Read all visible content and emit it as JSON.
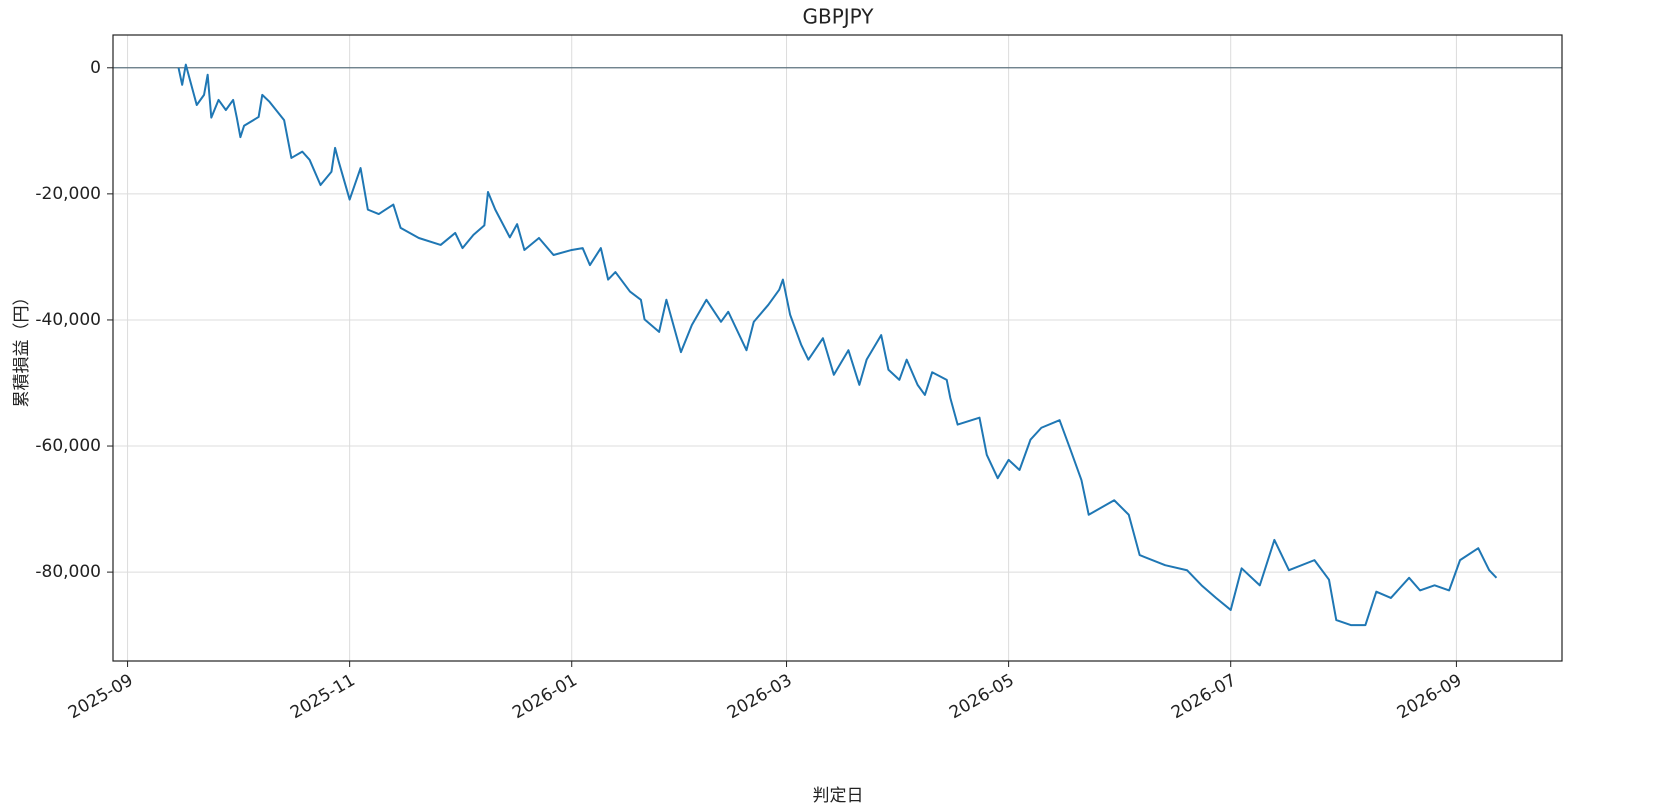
{
  "chart_data": {
    "type": "line",
    "title": "GBPJPY",
    "x_label": "判定日",
    "y_label": "累積損益（円）",
    "x": [
      "2025-09-15",
      "2025-09-16",
      "2025-09-17",
      "2025-09-20",
      "2025-09-22",
      "2025-09-23",
      "2025-09-24",
      "2025-09-26",
      "2025-09-28",
      "2025-09-30",
      "2025-10-01",
      "2025-10-02",
      "2025-10-03",
      "2025-10-07",
      "2025-10-08",
      "2025-10-10",
      "2025-10-14",
      "2025-10-16",
      "2025-10-19",
      "2025-10-21",
      "2025-10-24",
      "2025-10-27",
      "2025-10-28",
      "2025-10-29",
      "2025-11-01",
      "2025-11-04",
      "2025-11-06",
      "2025-11-09",
      "2025-11-13",
      "2025-11-15",
      "2025-11-20",
      "2025-11-26",
      "2025-11-30",
      "2025-12-02",
      "2025-12-05",
      "2025-12-08",
      "2025-12-09",
      "2025-12-11",
      "2025-12-15",
      "2025-12-17",
      "2025-12-19",
      "2025-12-23",
      "2025-12-27",
      "2026-01-01",
      "2026-01-04",
      "2026-01-06",
      "2026-01-09",
      "2026-01-11",
      "2026-01-13",
      "2026-01-17",
      "2026-01-20",
      "2026-01-21",
      "2026-01-25",
      "2026-01-27",
      "2026-01-31",
      "2026-02-03",
      "2026-02-07",
      "2026-02-11",
      "2026-02-13",
      "2026-02-18",
      "2026-02-20",
      "2026-02-24",
      "2026-02-27",
      "2026-02-28",
      "2026-03-02",
      "2026-03-05",
      "2026-03-07",
      "2026-03-11",
      "2026-03-14",
      "2026-03-18",
      "2026-03-21",
      "2026-03-23",
      "2026-03-27",
      "2026-03-29",
      "2026-04-01",
      "2026-04-03",
      "2026-04-06",
      "2026-04-08",
      "2026-04-10",
      "2026-04-14",
      "2026-04-15",
      "2026-04-17",
      "2026-04-23",
      "2026-04-25",
      "2026-04-28",
      "2026-05-01",
      "2026-05-04",
      "2026-05-07",
      "2026-05-10",
      "2026-05-15",
      "2026-05-18",
      "2026-05-21",
      "2026-05-23",
      "2026-05-30",
      "2026-06-03",
      "2026-06-06",
      "2026-06-13",
      "2026-06-19",
      "2026-06-23",
      "2026-06-27",
      "2026-07-01",
      "2026-07-04",
      "2026-07-09",
      "2026-07-13",
      "2026-07-17",
      "2026-07-24",
      "2026-07-28",
      "2026-07-30",
      "2026-08-03",
      "2026-08-07",
      "2026-08-10",
      "2026-08-14",
      "2026-08-19",
      "2026-08-22",
      "2026-08-26",
      "2026-08-30",
      "2026-09-02",
      "2026-09-07",
      "2026-09-10",
      "2026-09-12"
    ],
    "series": [
      {
        "color": "#1f77b4",
        "values": [
          0,
          -2700,
          500,
          -5900,
          -4300,
          -1100,
          -7900,
          -5100,
          -6700,
          -5100,
          -7900,
          -11000,
          -9200,
          -7800,
          -4300,
          -5400,
          -8300,
          -14300,
          -13300,
          -14600,
          -18600,
          -16500,
          -12700,
          -14900,
          -20900,
          -15900,
          -22500,
          -23200,
          -21700,
          -25400,
          -27000,
          -28100,
          -26200,
          -28600,
          -26500,
          -25000,
          -19700,
          -22500,
          -26900,
          -24800,
          -28900,
          -27000,
          -29700,
          -28900,
          -28600,
          -31300,
          -28600,
          -33600,
          -32400,
          -35500,
          -36800,
          -39900,
          -41900,
          -36800,
          -45100,
          -40800,
          -36800,
          -40300,
          -38700,
          -44800,
          -40300,
          -37600,
          -35200,
          -33600,
          -39200,
          -43900,
          -46300,
          -42900,
          -48700,
          -44800,
          -50300,
          -46300,
          -42400,
          -47900,
          -49500,
          -46300,
          -50300,
          -51900,
          -48300,
          -49500,
          -52400,
          -56600,
          -55500,
          -61400,
          -65100,
          -62200,
          -63800,
          -59000,
          -57100,
          -55900,
          -60600,
          -65400,
          -70900,
          -68600,
          -70900,
          -77300,
          -78900,
          -79700,
          -82100,
          -84100,
          -86000,
          -79400,
          -82100,
          -74900,
          -79700,
          -78100,
          -81200,
          -87600,
          -88400,
          -88400,
          -83100,
          -84100,
          -80900,
          -82900,
          -82100,
          -82900,
          -78100,
          -76200,
          -79700,
          -80900
        ]
      }
    ],
    "xlim": [
      "2025-08-28",
      "2026-09-30"
    ],
    "xticks": [
      "2025-09",
      "2025-11",
      "2026-01",
      "2026-03",
      "2026-05",
      "2026-07",
      "2026-09"
    ],
    "ylim": [
      -94100,
      5200
    ],
    "yticks": [
      0,
      {
        "value": -20000,
        "label": "-20,000"
      },
      {
        "value": -40000,
        "label": "-40,000"
      },
      {
        "value": -60000,
        "label": "-60,000"
      },
      {
        "value": -80000,
        "label": "-80,000"
      }
    ],
    "reference_line": {
      "y": 0,
      "color": "#5f7481"
    },
    "grid": true
  }
}
